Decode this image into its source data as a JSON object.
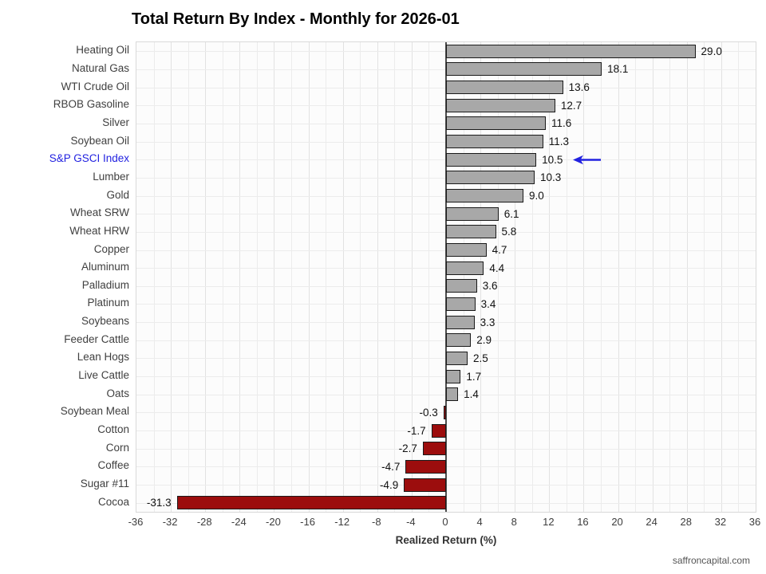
{
  "header": {
    "title": "Total Return By Index - Monthly for 2026-01"
  },
  "footer": {
    "text": "saffroncapital.com"
  },
  "chart_data": {
    "type": "bar",
    "orientation": "horizontal",
    "title": "Total Return By Index - Monthly for 2026-01",
    "xlabel": "Realized Return (%)",
    "xlim": [
      -36,
      36
    ],
    "xticks": [
      -36,
      -32,
      -28,
      -24,
      -20,
      -16,
      -12,
      -8,
      -4,
      0,
      4,
      8,
      12,
      16,
      20,
      24,
      28,
      32,
      36
    ],
    "minor_grid_step": 2,
    "grid": true,
    "legend": "none",
    "categories": [
      "Heating Oil",
      "Natural Gas",
      "WTI Crude Oil",
      "RBOB Gasoline",
      "Silver",
      "Soybean Oil",
      "S&P GSCI Index",
      "Lumber",
      "Gold",
      "Wheat SRW",
      "Wheat HRW",
      "Copper",
      "Aluminum",
      "Palladium",
      "Platinum",
      "Soybeans",
      "Feeder Cattle",
      "Lean Hogs",
      "Live Cattle",
      "Oats",
      "Soybean Meal",
      "Cotton",
      "Corn",
      "Coffee",
      "Sugar #11",
      "Cocoa"
    ],
    "values": [
      29.0,
      18.1,
      13.6,
      12.7,
      11.6,
      11.3,
      10.5,
      10.3,
      9.0,
      6.1,
      5.8,
      4.7,
      4.4,
      3.6,
      3.4,
      3.3,
      2.9,
      2.5,
      1.7,
      1.4,
      -0.3,
      -1.7,
      -2.7,
      -4.7,
      -4.9,
      -31.3
    ],
    "value_labels": [
      "29.0",
      "18.1",
      "13.6",
      "12.7",
      "11.6",
      "11.3",
      "10.5",
      "10.3",
      "9.0",
      "6.1",
      "5.8",
      "4.7",
      "4.4",
      "3.6",
      "3.4",
      "3.3",
      "2.9",
      "2.5",
      "1.7",
      "1.4",
      "-0.3",
      "-1.7",
      "-2.7",
      "-4.7",
      "-4.9",
      "-31.3"
    ],
    "highlight": {
      "index": 6,
      "category": "S&P GSCI Index",
      "marker": "left-arrow"
    },
    "colors": {
      "positive_bar": "#a8a8a8",
      "negative_bar": "#9c0d0d",
      "bar_border": "#1a1a1a",
      "highlight": "#2222e0",
      "grid": "#ececec",
      "zero_line": "#4d4d4d"
    }
  }
}
